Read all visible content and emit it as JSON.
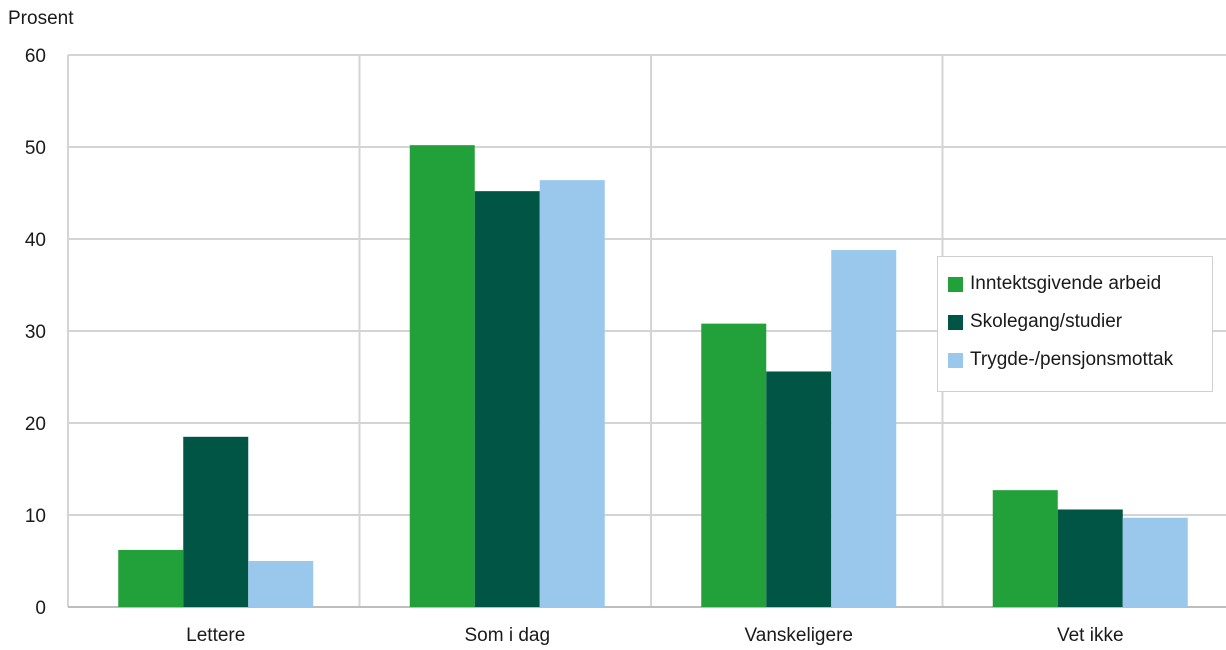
{
  "chart_data": {
    "type": "bar",
    "ylabel": "Prosent",
    "ylim": [
      0,
      60
    ],
    "yticks": [
      0,
      10,
      20,
      30,
      40,
      50,
      60
    ],
    "categories": [
      "Lettere",
      "Som i dag",
      "Vanskeligere",
      "Vet ikke"
    ],
    "series": [
      {
        "name": "Inntektsgivende arbeid",
        "color": "#22a03a",
        "values": [
          6.2,
          50.2,
          30.8,
          12.7
        ]
      },
      {
        "name": "Skolegang/studier",
        "color": "#005545",
        "values": [
          18.5,
          45.2,
          25.6,
          10.6
        ]
      },
      {
        "name": "Trygde-/pensjonsmottak",
        "color": "#9ac8ec",
        "values": [
          5.0,
          46.4,
          38.8,
          9.7
        ]
      }
    ],
    "grid": true,
    "legend_position": "right"
  }
}
